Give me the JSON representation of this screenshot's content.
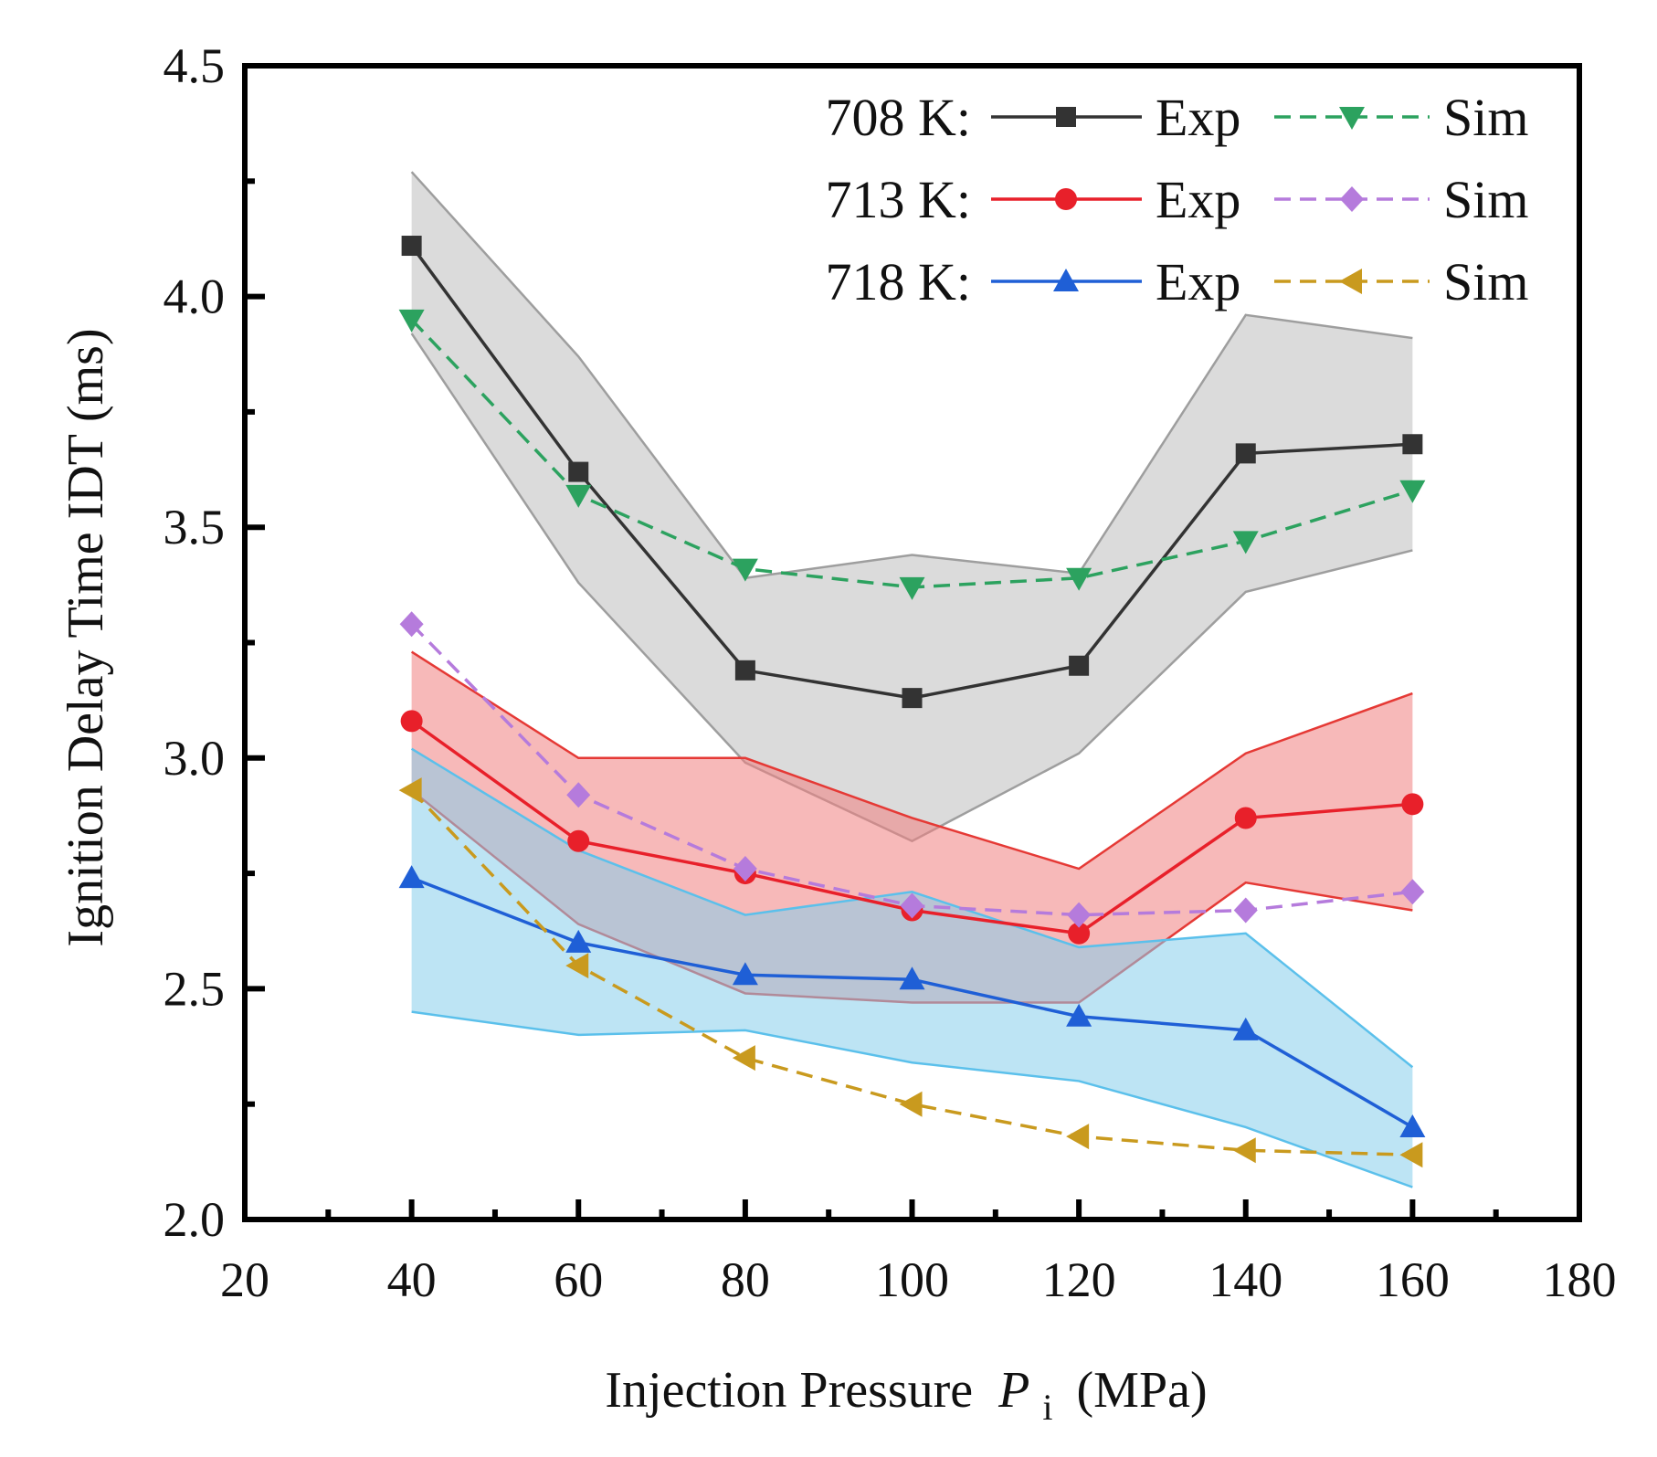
{
  "chart_data": {
    "type": "line",
    "title": "",
    "xlabel": "Injection Pressure",
    "xlabel_symbol": "P",
    "xlabel_subscript": "i",
    "xlabel_unit": "(MPa)",
    "ylabel": "Ignition Delay Time IDT (ms)",
    "xlim": [
      20,
      180
    ],
    "ylim": [
      2.0,
      4.5
    ],
    "xticks": [
      20,
      40,
      60,
      80,
      100,
      120,
      140,
      160,
      180
    ],
    "xtick_labels": [
      "20",
      "40",
      "60",
      "80",
      "100",
      "120",
      "140",
      "160",
      "180"
    ],
    "yticks": [
      2.0,
      2.5,
      3.0,
      3.5,
      4.0,
      4.5
    ],
    "ytick_labels": [
      "2.0",
      "2.5",
      "3.0",
      "3.5",
      "4.0",
      "4.5"
    ],
    "grid": false,
    "legend_position": "top-right",
    "x": [
      40,
      60,
      80,
      100,
      120,
      140,
      160
    ],
    "bands": [
      {
        "name": "708 K Exp range",
        "color": "#bdbdbd",
        "edge_color": "#9e9e9e",
        "upper": [
          4.27,
          3.87,
          3.39,
          3.44,
          3.4,
          3.96,
          3.91
        ],
        "lower": [
          3.92,
          3.38,
          2.99,
          2.82,
          3.01,
          3.36,
          3.45
        ]
      },
      {
        "name": "713 K Exp range",
        "color": "#f08080",
        "edge_color": "#e53935",
        "upper": [
          3.23,
          3.0,
          3.0,
          2.87,
          2.76,
          3.01,
          3.14
        ],
        "lower": [
          2.93,
          2.64,
          2.49,
          2.47,
          2.47,
          2.73,
          2.67
        ]
      },
      {
        "name": "718 K Exp range",
        "color": "#87ceeb",
        "edge_color": "#5bc0eb",
        "upper": [
          3.02,
          2.8,
          2.66,
          2.71,
          2.59,
          2.62,
          2.33
        ],
        "lower": [
          2.45,
          2.4,
          2.41,
          2.34,
          2.3,
          2.2,
          2.07
        ]
      }
    ],
    "series": [
      {
        "name": "708 K Exp",
        "temperature": "708 K:",
        "kind": "Exp",
        "color": "#333333",
        "dash": false,
        "marker": "square",
        "values": [
          4.11,
          3.62,
          3.19,
          3.13,
          3.2,
          3.66,
          3.68
        ]
      },
      {
        "name": "708 K Sim",
        "temperature": "708 K:",
        "kind": "Sim",
        "color": "#2ca25f",
        "dash": true,
        "marker": "triangle-down",
        "values": [
          3.95,
          3.57,
          3.41,
          3.37,
          3.39,
          3.47,
          3.58
        ]
      },
      {
        "name": "713 K Exp",
        "temperature": "713 K:",
        "kind": "Exp",
        "color": "#e8202a",
        "dash": false,
        "marker": "circle",
        "values": [
          3.08,
          2.82,
          2.75,
          2.67,
          2.62,
          2.87,
          2.9
        ]
      },
      {
        "name": "713 K Sim",
        "temperature": "713 K:",
        "kind": "Sim",
        "color": "#b57bdc",
        "dash": true,
        "marker": "diamond",
        "values": [
          3.29,
          2.92,
          2.76,
          2.68,
          2.66,
          2.67,
          2.71
        ]
      },
      {
        "name": "718 K Exp",
        "temperature": "718 K:",
        "kind": "Exp",
        "color": "#1f5fd6",
        "dash": false,
        "marker": "triangle-up",
        "values": [
          2.74,
          2.6,
          2.53,
          2.52,
          2.44,
          2.41,
          2.2
        ]
      },
      {
        "name": "718 K Sim",
        "temperature": "718 K:",
        "kind": "Sim",
        "color": "#c99a1e",
        "dash": true,
        "marker": "triangle-left",
        "values": [
          2.93,
          2.55,
          2.35,
          2.25,
          2.18,
          2.15,
          2.14
        ]
      }
    ],
    "legend": [
      {
        "label": "708 K:",
        "exp": "Exp",
        "sim": "Sim"
      },
      {
        "label": "713 K:",
        "exp": "Exp",
        "sim": "Sim"
      },
      {
        "label": "718 K:",
        "exp": "Exp",
        "sim": "Sim"
      }
    ]
  }
}
